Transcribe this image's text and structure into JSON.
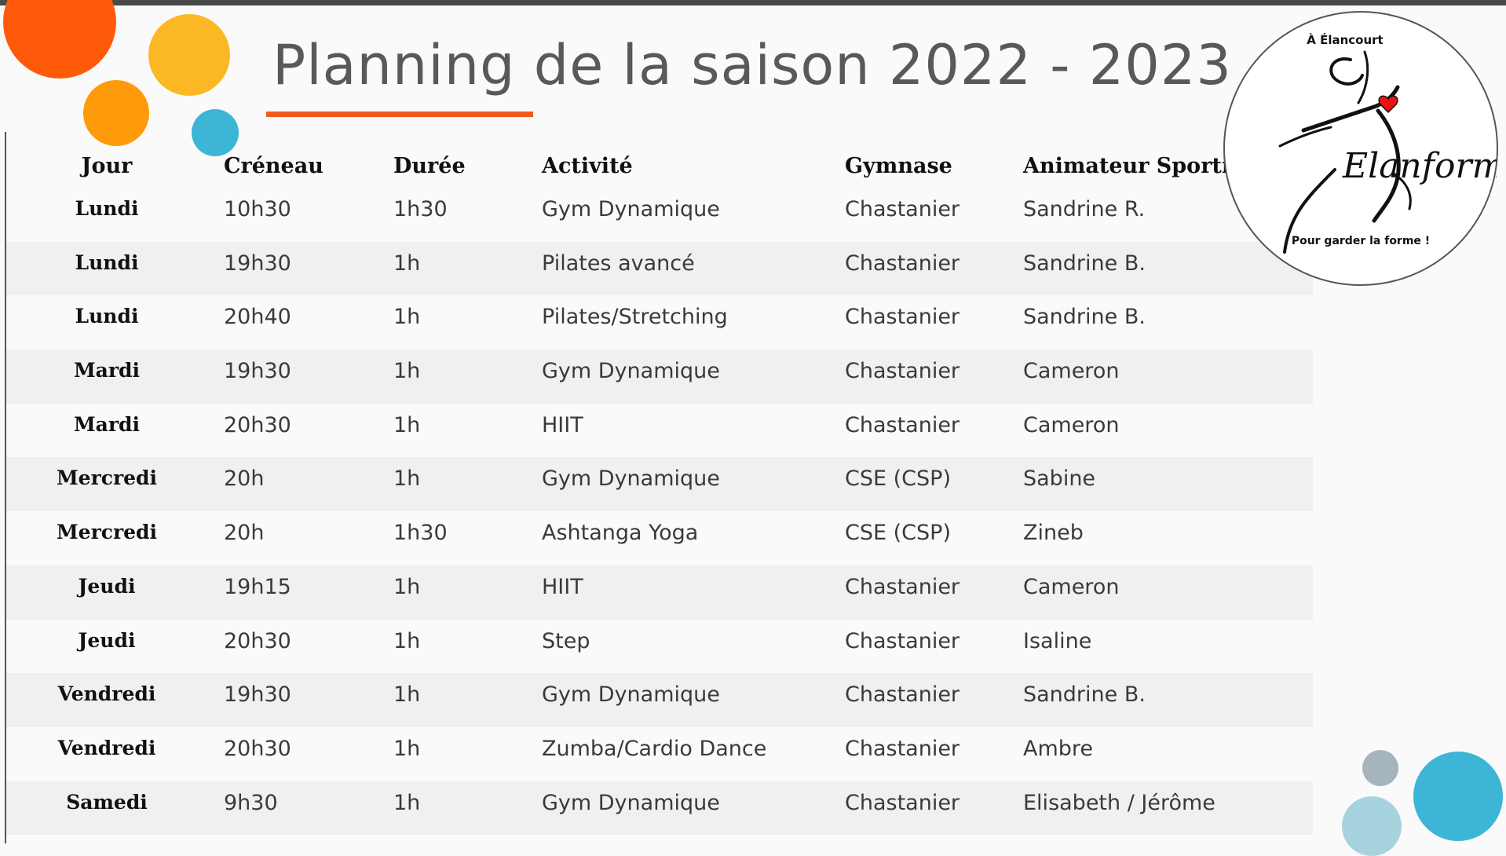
{
  "title": "Planning de la saison 2022 - 2023",
  "colors": {
    "accent": "#f05a1e",
    "orange_dark": "#ff5a0a",
    "orange": "#ff9a0a",
    "yellow": "#fbb824",
    "blue": "#3db5d6",
    "grey_blue": "#a5b5bb",
    "light_blue": "#a7d3de"
  },
  "logo": {
    "top_text": "À Élancourt",
    "brand": "Elanforme",
    "bottom_text": "Pour garder la forme !"
  },
  "table": {
    "headers": {
      "jour": "Jour",
      "creneau": "Créneau",
      "duree": "Durée",
      "activite": "Activité",
      "gymnase": "Gymnase",
      "animateur": "Animateur Sportif"
    },
    "rows": [
      {
        "jour": "Lundi",
        "creneau": "10h30",
        "duree": "1h30",
        "activite": "Gym Dynamique",
        "gymnase": "Chastanier",
        "animateur": "Sandrine R."
      },
      {
        "jour": "Lundi",
        "creneau": "19h30",
        "duree": "1h",
        "activite": "Pilates avancé",
        "gymnase": "Chastanier",
        "animateur": "Sandrine B."
      },
      {
        "jour": "Lundi",
        "creneau": "20h40",
        "duree": "1h",
        "activite": "Pilates/Stretching",
        "gymnase": "Chastanier",
        "animateur": "Sandrine B."
      },
      {
        "jour": "Mardi",
        "creneau": "19h30",
        "duree": "1h",
        "activite": "Gym Dynamique",
        "gymnase": "Chastanier",
        "animateur": "Cameron"
      },
      {
        "jour": "Mardi",
        "creneau": "20h30",
        "duree": "1h",
        "activite": "HIIT",
        "gymnase": "Chastanier",
        "animateur": "Cameron"
      },
      {
        "jour": "Mercredi",
        "creneau": "20h",
        "duree": "1h",
        "activite": "Gym Dynamique",
        "gymnase": "CSE (CSP)",
        "animateur": "Sabine"
      },
      {
        "jour": "Mercredi",
        "creneau": "20h",
        "duree": "1h30",
        "activite": "Ashtanga Yoga",
        "gymnase": "CSE (CSP)",
        "animateur": "Zineb"
      },
      {
        "jour": "Jeudi",
        "creneau": "19h15",
        "duree": "1h",
        "activite": "HIIT",
        "gymnase": "Chastanier",
        "animateur": "Cameron"
      },
      {
        "jour": "Jeudi",
        "creneau": "20h30",
        "duree": "1h",
        "activite": "Step",
        "gymnase": "Chastanier",
        "animateur": "Isaline"
      },
      {
        "jour": "Vendredi",
        "creneau": "19h30",
        "duree": "1h",
        "activite": "Gym Dynamique",
        "gymnase": "Chastanier",
        "animateur": "Sandrine B."
      },
      {
        "jour": "Vendredi",
        "creneau": "20h30",
        "duree": "1h",
        "activite": "Zumba/Cardio Dance",
        "gymnase": "Chastanier",
        "animateur": "Ambre"
      },
      {
        "jour": "Samedi",
        "creneau": "9h30",
        "duree": "1h",
        "activite": "Gym Dynamique",
        "gymnase": "Chastanier",
        "animateur": "Elisabeth / Jérôme"
      }
    ]
  }
}
